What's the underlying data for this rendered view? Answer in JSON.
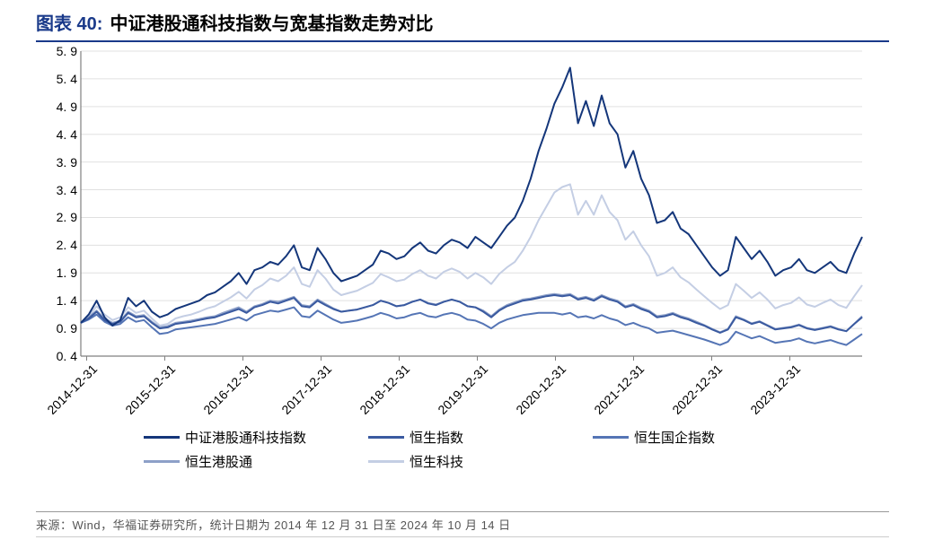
{
  "title_prefix": "图表 40:",
  "title": "中证港股通科技指数与宽基指数走势对比",
  "source": "来源：Wind，华福证券研究所，统计日期为 2014 年 12 月 31 日至 2024 年 10 月 14 日",
  "chart": {
    "type": "line",
    "background_color": "#ffffff",
    "grid_color": "#e0e0e0",
    "axis_color": "#808080",
    "ylim": [
      0.4,
      5.9
    ],
    "ytick_step": 0.5,
    "yticks": [
      0.4,
      0.9,
      1.4,
      1.9,
      2.4,
      2.9,
      3.4,
      3.9,
      4.4,
      4.9,
      5.4,
      5.9
    ],
    "x_categories": [
      "2014-12-31",
      "2015-12-31",
      "2016-12-31",
      "2017-12-31",
      "2018-12-31",
      "2019-12-31",
      "2020-12-31",
      "2021-12-31",
      "2022-12-31",
      "2023-12-31"
    ],
    "line_width": 2.0,
    "series": [
      {
        "name": "中证港股通科技指数",
        "color": "#14367a",
        "data": [
          1.0,
          1.15,
          1.4,
          1.1,
          0.95,
          1.05,
          1.45,
          1.3,
          1.4,
          1.2,
          1.1,
          1.15,
          1.25,
          1.3,
          1.35,
          1.4,
          1.5,
          1.55,
          1.65,
          1.75,
          1.9,
          1.7,
          1.95,
          2.0,
          2.1,
          2.05,
          2.2,
          2.4,
          2.0,
          1.95,
          2.35,
          2.15,
          1.9,
          1.75,
          1.8,
          1.85,
          1.95,
          2.05,
          2.3,
          2.25,
          2.15,
          2.2,
          2.35,
          2.45,
          2.3,
          2.25,
          2.4,
          2.5,
          2.45,
          2.35,
          2.55,
          2.45,
          2.35,
          2.55,
          2.75,
          2.9,
          3.2,
          3.6,
          4.1,
          4.5,
          4.95,
          5.25,
          5.6,
          4.6,
          5.0,
          4.55,
          5.1,
          4.6,
          4.4,
          3.8,
          4.1,
          3.6,
          3.3,
          2.8,
          2.85,
          3.0,
          2.7,
          2.6,
          2.4,
          2.2,
          2.0,
          1.85,
          1.95,
          2.55,
          2.35,
          2.15,
          2.3,
          2.1,
          1.85,
          1.95,
          2.0,
          2.15,
          1.95,
          1.9,
          2.0,
          2.1,
          1.95,
          1.9,
          2.25,
          2.55
        ]
      },
      {
        "name": "恒生指数",
        "color": "#3a5aa0",
        "data": [
          1.0,
          1.08,
          1.2,
          1.05,
          0.98,
          1.02,
          1.18,
          1.1,
          1.12,
          1.0,
          0.9,
          0.92,
          0.98,
          1.0,
          1.02,
          1.05,
          1.08,
          1.1,
          1.15,
          1.2,
          1.25,
          1.18,
          1.28,
          1.32,
          1.38,
          1.35,
          1.4,
          1.45,
          1.3,
          1.28,
          1.4,
          1.32,
          1.25,
          1.2,
          1.22,
          1.24,
          1.28,
          1.32,
          1.4,
          1.36,
          1.3,
          1.32,
          1.38,
          1.42,
          1.35,
          1.32,
          1.38,
          1.42,
          1.38,
          1.3,
          1.28,
          1.2,
          1.1,
          1.22,
          1.3,
          1.35,
          1.4,
          1.42,
          1.45,
          1.48,
          1.5,
          1.48,
          1.5,
          1.42,
          1.45,
          1.4,
          1.48,
          1.42,
          1.38,
          1.28,
          1.32,
          1.25,
          1.2,
          1.1,
          1.12,
          1.16,
          1.1,
          1.06,
          1.0,
          0.95,
          0.88,
          0.82,
          0.88,
          1.1,
          1.05,
          0.98,
          1.02,
          0.95,
          0.88,
          0.9,
          0.92,
          0.96,
          0.9,
          0.87,
          0.9,
          0.93,
          0.88,
          0.85,
          0.98,
          1.1
        ]
      },
      {
        "name": "恒生国企指数",
        "color": "#5575b5",
        "data": [
          1.0,
          1.06,
          1.15,
          1.02,
          0.95,
          0.98,
          1.1,
          1.02,
          1.05,
          0.92,
          0.8,
          0.82,
          0.88,
          0.9,
          0.92,
          0.94,
          0.96,
          0.98,
          1.02,
          1.06,
          1.1,
          1.04,
          1.14,
          1.18,
          1.22,
          1.2,
          1.24,
          1.28,
          1.12,
          1.1,
          1.22,
          1.14,
          1.06,
          1.0,
          1.02,
          1.04,
          1.08,
          1.12,
          1.18,
          1.14,
          1.08,
          1.1,
          1.15,
          1.18,
          1.12,
          1.1,
          1.15,
          1.18,
          1.14,
          1.06,
          1.04,
          0.98,
          0.9,
          1.0,
          1.06,
          1.1,
          1.14,
          1.16,
          1.18,
          1.18,
          1.18,
          1.15,
          1.18,
          1.1,
          1.12,
          1.08,
          1.14,
          1.08,
          1.04,
          0.96,
          1.0,
          0.94,
          0.9,
          0.82,
          0.84,
          0.86,
          0.82,
          0.78,
          0.74,
          0.7,
          0.65,
          0.6,
          0.66,
          0.84,
          0.78,
          0.72,
          0.76,
          0.7,
          0.64,
          0.66,
          0.68,
          0.72,
          0.66,
          0.63,
          0.66,
          0.69,
          0.64,
          0.6,
          0.7,
          0.8
        ]
      },
      {
        "name": "恒生港股通",
        "color": "#8da0c8",
        "data": [
          1.0,
          1.1,
          1.22,
          1.08,
          1.0,
          1.04,
          1.2,
          1.12,
          1.14,
          1.02,
          0.92,
          0.94,
          1.0,
          1.02,
          1.04,
          1.07,
          1.1,
          1.12,
          1.18,
          1.23,
          1.28,
          1.2,
          1.3,
          1.34,
          1.4,
          1.38,
          1.42,
          1.47,
          1.32,
          1.3,
          1.42,
          1.34,
          1.26,
          1.2,
          1.22,
          1.24,
          1.28,
          1.32,
          1.4,
          1.36,
          1.3,
          1.32,
          1.38,
          1.42,
          1.36,
          1.33,
          1.38,
          1.42,
          1.38,
          1.3,
          1.28,
          1.22,
          1.12,
          1.24,
          1.32,
          1.37,
          1.42,
          1.44,
          1.47,
          1.5,
          1.52,
          1.5,
          1.52,
          1.44,
          1.47,
          1.42,
          1.5,
          1.44,
          1.4,
          1.3,
          1.34,
          1.27,
          1.22,
          1.12,
          1.14,
          1.18,
          1.12,
          1.08,
          1.02,
          0.96,
          0.89,
          0.83,
          0.89,
          1.12,
          1.06,
          0.99,
          1.03,
          0.96,
          0.89,
          0.91,
          0.93,
          0.97,
          0.91,
          0.88,
          0.91,
          0.94,
          0.89,
          0.85,
          0.98,
          1.12
        ]
      },
      {
        "name": "恒生科技",
        "color": "#c4cee4",
        "data": [
          1.0,
          1.12,
          1.3,
          1.15,
          1.05,
          1.1,
          1.28,
          1.18,
          1.22,
          1.08,
          0.95,
          0.98,
          1.08,
          1.12,
          1.15,
          1.2,
          1.26,
          1.3,
          1.38,
          1.46,
          1.56,
          1.44,
          1.6,
          1.68,
          1.8,
          1.75,
          1.85,
          2.0,
          1.7,
          1.65,
          1.95,
          1.8,
          1.6,
          1.5,
          1.54,
          1.58,
          1.65,
          1.72,
          1.88,
          1.82,
          1.75,
          1.78,
          1.88,
          1.95,
          1.85,
          1.8,
          1.92,
          1.98,
          1.92,
          1.8,
          1.9,
          1.82,
          1.7,
          1.88,
          2.0,
          2.1,
          2.3,
          2.55,
          2.85,
          3.1,
          3.35,
          3.45,
          3.5,
          2.95,
          3.2,
          2.95,
          3.3,
          3.0,
          2.85,
          2.5,
          2.65,
          2.4,
          2.2,
          1.85,
          1.9,
          2.0,
          1.82,
          1.73,
          1.6,
          1.48,
          1.36,
          1.25,
          1.32,
          1.7,
          1.58,
          1.45,
          1.55,
          1.42,
          1.26,
          1.32,
          1.36,
          1.46,
          1.33,
          1.29,
          1.36,
          1.42,
          1.32,
          1.27,
          1.48,
          1.68
        ]
      }
    ]
  }
}
